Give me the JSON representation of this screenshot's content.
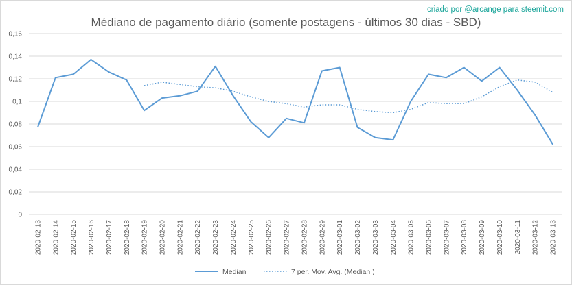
{
  "credit": "criado por @arcange para steemit.com",
  "colors": {
    "credit": "#1aa59a",
    "series": "#5b9bd5",
    "grid": "#d9d9d9",
    "text": "#595959"
  },
  "chart_data": {
    "type": "line",
    "title": "Médiano de pagamento diário (somente postagens - últimos 30 dias - SBD)",
    "xlabel": "",
    "ylabel": "",
    "ylim": [
      0,
      0.16
    ],
    "yticks": [
      "0",
      "0,02",
      "0,04",
      "0,06",
      "0,08",
      "0,1",
      "0,12",
      "0,14",
      "0,16"
    ],
    "grid": true,
    "legend_position": "bottom",
    "categories": [
      "2020-02-13",
      "2020-02-14",
      "2020-02-15",
      "2020-02-16",
      "2020-02-17",
      "2020-02-18",
      "2020-02-19",
      "2020-02-20",
      "2020-02-21",
      "2020-02-22",
      "2020-02-23",
      "2020-02-24",
      "2020-02-25",
      "2020-02-26",
      "2020-02-27",
      "2020-02-28",
      "2020-02-29",
      "2020-03-01",
      "2020-03-02",
      "2020-03-03",
      "2020-03-04",
      "2020-03-05",
      "2020-03-06",
      "2020-03-07",
      "2020-03-08",
      "2020-03-09",
      "2020-03-10",
      "2020-03-11",
      "2020-03-12",
      "2020-03-13"
    ],
    "series": [
      {
        "name": "Median",
        "style": "solid",
        "values": [
          0.077,
          0.121,
          0.124,
          0.137,
          0.126,
          0.119,
          0.092,
          0.103,
          0.105,
          0.109,
          0.131,
          0.105,
          0.082,
          0.068,
          0.085,
          0.081,
          0.127,
          0.13,
          0.077,
          0.068,
          0.066,
          0.1,
          0.124,
          0.121,
          0.13,
          0.118,
          0.13,
          0.11,
          0.088,
          0.062
        ]
      },
      {
        "name": "7 per. Mov. Avg. (Median )",
        "style": "dotted",
        "values": [
          null,
          null,
          null,
          null,
          null,
          null,
          0.114,
          0.117,
          0.115,
          0.113,
          0.112,
          0.109,
          0.104,
          0.1,
          0.098,
          0.095,
          0.097,
          0.097,
          0.093,
          0.091,
          0.09,
          0.093,
          0.099,
          0.098,
          0.098,
          0.104,
          0.113,
          0.119,
          0.117,
          0.108
        ]
      }
    ]
  }
}
